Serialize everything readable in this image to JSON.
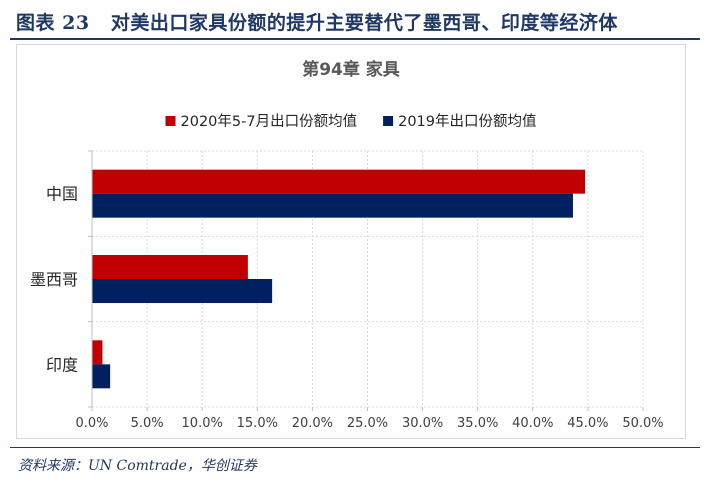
{
  "figure": {
    "label": "图表 23",
    "caption": "对美出口家具份额的提升主要替代了墨西哥、印度等经济体",
    "source": "资料来源：UN Comtrade，华创证券"
  },
  "chart_data": {
    "type": "bar",
    "orientation": "horizontal",
    "title": "第94章 家具",
    "categories": [
      "中国",
      "墨西哥",
      "印度"
    ],
    "series": [
      {
        "name": "2020年5-7月出口份额均值",
        "color": "#c00000",
        "values": [
          44.7,
          14.1,
          0.9
        ]
      },
      {
        "name": "2019年出口份额均值",
        "color": "#002060",
        "values": [
          43.6,
          16.3,
          1.6
        ]
      }
    ],
    "xlim": [
      0,
      50
    ],
    "xticks": [
      "0.0%",
      "5.0%",
      "10.0%",
      "15.0%",
      "20.0%",
      "25.0%",
      "30.0%",
      "35.0%",
      "40.0%",
      "45.0%",
      "50.0%"
    ],
    "grid": true,
    "legend_position": "top"
  }
}
